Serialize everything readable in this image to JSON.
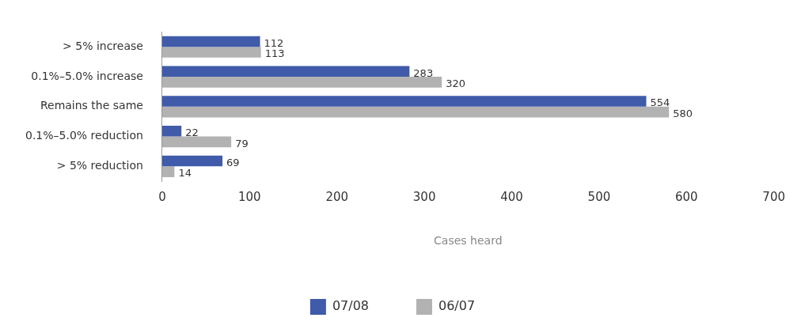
{
  "chart_data": {
    "type": "bar",
    "orientation": "horizontal",
    "categories": [
      "> 5% increase",
      "0.1%–5.0% increase",
      "Remains the same",
      "0.1%–5.0% reduction",
      "> 5% reduction"
    ],
    "series": [
      {
        "name": "07/08",
        "color": "#3f5ba9",
        "values": [
          112,
          283,
          554,
          22,
          69
        ]
      },
      {
        "name": "06/07",
        "color": "#b2b2b2",
        "values": [
          113,
          320,
          580,
          79,
          14
        ]
      }
    ],
    "xlabel": "Cases heard",
    "xlim": [
      0,
      700
    ],
    "xticks": [
      0,
      100,
      200,
      300,
      400,
      500,
      600,
      700
    ],
    "grid": false,
    "legend": "bottom",
    "data_labels": true
  }
}
